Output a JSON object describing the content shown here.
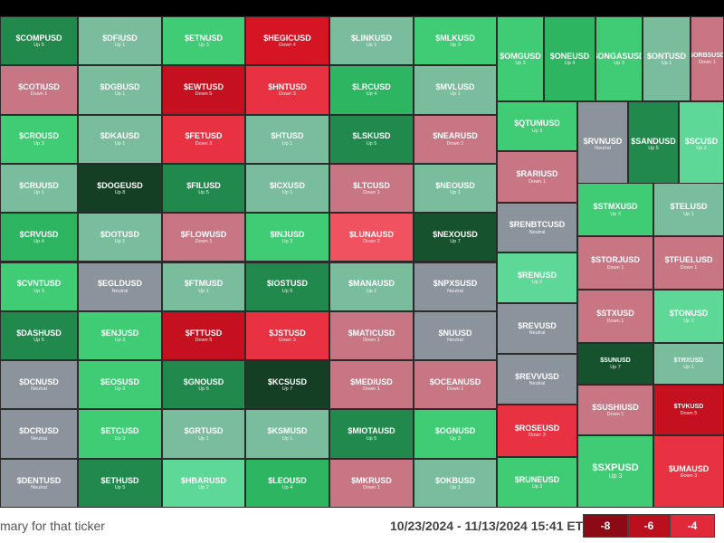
{
  "colors": {
    "up7": "#143f25",
    "up6": "#17522f",
    "up5": "#22894d",
    "up4": "#2eb561",
    "up3": "#3fcc75",
    "up2": "#5dd896",
    "up1": "#7abd9d",
    "neutral": "#8b939c",
    "down1": "#c87584",
    "down2": "#f0525f",
    "down3": "#e83241",
    "down4": "#d51424",
    "down5": "#c4101f",
    "down6": "#9e0f1c",
    "legend_m8": "#8c0a15",
    "legend_m6": "#bb0f1e",
    "legend_m4": "#e2293a"
  },
  "footer": {
    "hint": "mary for that ticker",
    "date_range": "10/23/2024 - 11/13/2024 15:41 ET",
    "legend": [
      "-8",
      "-6",
      "-4"
    ]
  },
  "tiles": [
    {
      "sym": "$COMPUSD",
      "sub": "Up 5",
      "c": "up5"
    },
    {
      "sym": "$DFIUSD",
      "sub": "Up 1",
      "c": "up1"
    },
    {
      "sym": "$ETNUSD",
      "sub": "Up 3",
      "c": "up3"
    },
    {
      "sym": "$HEGICUSD",
      "sub": "Down 4",
      "c": "down4"
    },
    {
      "sym": "$LINKUSD",
      "sub": "Up 1",
      "c": "up1"
    },
    {
      "sym": "$MLKUSD",
      "sub": "Up 3",
      "c": "up3"
    },
    {
      "sym": "$COTIUSD",
      "sub": "Down 1",
      "c": "down1"
    },
    {
      "sym": "$DGBUSD",
      "sub": "Up 1",
      "c": "up1"
    },
    {
      "sym": "$EWTUSD",
      "sub": "Down 5",
      "c": "down5"
    },
    {
      "sym": "$HNTUSD",
      "sub": "Down 3",
      "c": "down3"
    },
    {
      "sym": "$LRCUSD",
      "sub": "Up 4",
      "c": "up4"
    },
    {
      "sym": "$MVLUSD",
      "sub": "Up 1",
      "c": "up1"
    },
    {
      "sym": "$CROUSD",
      "sub": "Up 3",
      "c": "up3"
    },
    {
      "sym": "$DKAUSD",
      "sub": "Up 1",
      "c": "up1"
    },
    {
      "sym": "$FETUSD",
      "sub": "Down 3",
      "c": "down3"
    },
    {
      "sym": "$HTUSD",
      "sub": "Up 1",
      "c": "up1"
    },
    {
      "sym": "$LSKUSD",
      "sub": "Up 5",
      "c": "up5"
    },
    {
      "sym": "$NEARUSD",
      "sub": "Down 1",
      "c": "down1"
    },
    {
      "sym": "$CRUUSD",
      "sub": "Up 1",
      "c": "up1"
    },
    {
      "sym": "$DOGEUSD",
      "sub": "Up 8",
      "c": "up7"
    },
    {
      "sym": "$FILUSD",
      "sub": "Up 5",
      "c": "up5"
    },
    {
      "sym": "$ICXUSD",
      "sub": "Up 1",
      "c": "up1"
    },
    {
      "sym": "$LTCUSD",
      "sub": "Down 1",
      "c": "down1"
    },
    {
      "sym": "$NEOUSD",
      "sub": "Up 1",
      "c": "up1"
    },
    {
      "sym": "$CRVUSD",
      "sub": "Up 4",
      "c": "up4"
    },
    {
      "sym": "$DOTUSD",
      "sub": "Up 1",
      "c": "up1"
    },
    {
      "sym": "$FLOWUSD",
      "sub": "Down 1",
      "c": "down1"
    },
    {
      "sym": "$INJUSD",
      "sub": "Up 3",
      "c": "up3"
    },
    {
      "sym": "$LUNAUSD",
      "sub": "Down 2",
      "c": "down2"
    },
    {
      "sym": "$NEXOUSD",
      "sub": "Up 7",
      "c": "up6"
    },
    {
      "sym": "$CVNTUSD",
      "sub": "Up 3",
      "c": "up3"
    },
    {
      "sym": "$EGLDUSD",
      "sub": "Neutral",
      "c": "neutral"
    },
    {
      "sym": "$FTMUSD",
      "sub": "Up 1",
      "c": "up1"
    },
    {
      "sym": "$IOSTUSD",
      "sub": "Up 5",
      "c": "up5"
    },
    {
      "sym": "$MANAUSD",
      "sub": "Up 1",
      "c": "up1"
    },
    {
      "sym": "$NPXSUSD",
      "sub": "Neutral",
      "c": "neutral"
    },
    {
      "sym": "$DASHUSD",
      "sub": "Up 5",
      "c": "up5"
    },
    {
      "sym": "$ENJUSD",
      "sub": "Up 3",
      "c": "up3"
    },
    {
      "sym": "$FTTUSD",
      "sub": "Down 5",
      "c": "down5"
    },
    {
      "sym": "$JSTUSD",
      "sub": "Down 3",
      "c": "down3"
    },
    {
      "sym": "$MATICUSD",
      "sub": "Down 1",
      "c": "down1"
    },
    {
      "sym": "$NUUSD",
      "sub": "Neutral",
      "c": "neutral"
    },
    {
      "sym": "$DCNUSD",
      "sub": "Neutral",
      "c": "neutral"
    },
    {
      "sym": "$EOSUSD",
      "sub": "Up 3",
      "c": "up3"
    },
    {
      "sym": "$GNOUSD",
      "sub": "Up 5",
      "c": "up5"
    },
    {
      "sym": "$KCSUSD",
      "sub": "Up 7",
      "c": "up7"
    },
    {
      "sym": "$MEDIUSD",
      "sub": "Down 1",
      "c": "down1"
    },
    {
      "sym": "$OCEANUSD",
      "sub": "Down 1",
      "c": "down1"
    },
    {
      "sym": "$DCRUSD",
      "sub": "Neutral",
      "c": "neutral"
    },
    {
      "sym": "$ETCUSD",
      "sub": "Up 3",
      "c": "up3"
    },
    {
      "sym": "$GRTUSD",
      "sub": "Up 1",
      "c": "up1"
    },
    {
      "sym": "$KSMUSD",
      "sub": "Up 1",
      "c": "up1"
    },
    {
      "sym": "$MIOTAUSD",
      "sub": "Up 5",
      "c": "up5"
    },
    {
      "sym": "$OGNUSD",
      "sub": "Up 3",
      "c": "up3"
    },
    {
      "sym": "$DENTUSD",
      "sub": "Neutral",
      "c": "neutral"
    },
    {
      "sym": "$ETHUSD",
      "sub": "Up 5",
      "c": "up5"
    },
    {
      "sym": "$HBARUSD",
      "sub": "Up 2",
      "c": "up2"
    },
    {
      "sym": "$LEOUSD",
      "sub": "Up 4",
      "c": "up4"
    },
    {
      "sym": "$MKRUSD",
      "sub": "Down 1",
      "c": "down1"
    },
    {
      "sym": "$OKBUSD",
      "sub": "Up 1",
      "c": "up1"
    },
    {
      "sym": "$OMGUSD",
      "sub": "Up 3",
      "c": "up3"
    },
    {
      "sym": "$ONEUSD",
      "sub": "Up 4",
      "c": "up4"
    },
    {
      "sym": "$ONGASUSD",
      "sub": "Up 3",
      "c": "up3"
    },
    {
      "sym": "$ONTUSD",
      "sub": "Up 1",
      "c": "up1"
    },
    {
      "sym": "$ORBSUSD",
      "sub": "Down 1",
      "c": "down1"
    },
    {
      "sym": "$QTUMUSD",
      "sub": "Up 3",
      "c": "up3"
    },
    {
      "sym": "$RVNUSD",
      "sub": "Neutral",
      "c": "neutral"
    },
    {
      "sym": "$SANDUSD",
      "sub": "Up 5",
      "c": "up5"
    },
    {
      "sym": "$SCUSD",
      "sub": "Up 2",
      "c": "up2"
    },
    {
      "sym": "$RARIUSD",
      "sub": "Down 1",
      "c": "down1"
    },
    {
      "sym": "$STMXUSD",
      "sub": "Up 3",
      "c": "up3"
    },
    {
      "sym": "$TELUSD",
      "sub": "Up 1",
      "c": "up1"
    },
    {
      "sym": "$RENBTCUSD",
      "sub": "Neutral",
      "c": "neutral"
    },
    {
      "sym": "$STORJUSD",
      "sub": "Down 1",
      "c": "down1"
    },
    {
      "sym": "$TFUELUSD",
      "sub": "Down 1",
      "c": "down1"
    },
    {
      "sym": "$RENUSD",
      "sub": "Up 2",
      "c": "up2"
    },
    {
      "sym": "$STXUSD",
      "sub": "Down 1",
      "c": "down1"
    },
    {
      "sym": "$TONUSD",
      "sub": "Up 2",
      "c": "up2"
    },
    {
      "sym": "$REVUSD",
      "sub": "Neutral",
      "c": "neutral"
    },
    {
      "sym": "$SUNUSD",
      "sub": "Up 7",
      "c": "up6"
    },
    {
      "sym": "$TRXUSD",
      "sub": "Up 1",
      "c": "up1"
    },
    {
      "sym": "$REVVUSD",
      "sub": "Neutral",
      "c": "neutral"
    },
    {
      "sym": "$ROSEUSD",
      "sub": "Down 3",
      "c": "down3"
    },
    {
      "sym": "$SUSHIUSD",
      "sub": "Down 1",
      "c": "down1"
    },
    {
      "sym": "$TVKUSD",
      "sub": "Down 5",
      "c": "down5"
    },
    {
      "sym": "$RUNEUSD",
      "sub": "Up 3",
      "c": "up3"
    },
    {
      "sym": "$SXPUSD",
      "sub": "Up 3",
      "c": "up3"
    },
    {
      "sym": "$UMAUSD",
      "sub": "Down 3",
      "c": "down3"
    }
  ]
}
